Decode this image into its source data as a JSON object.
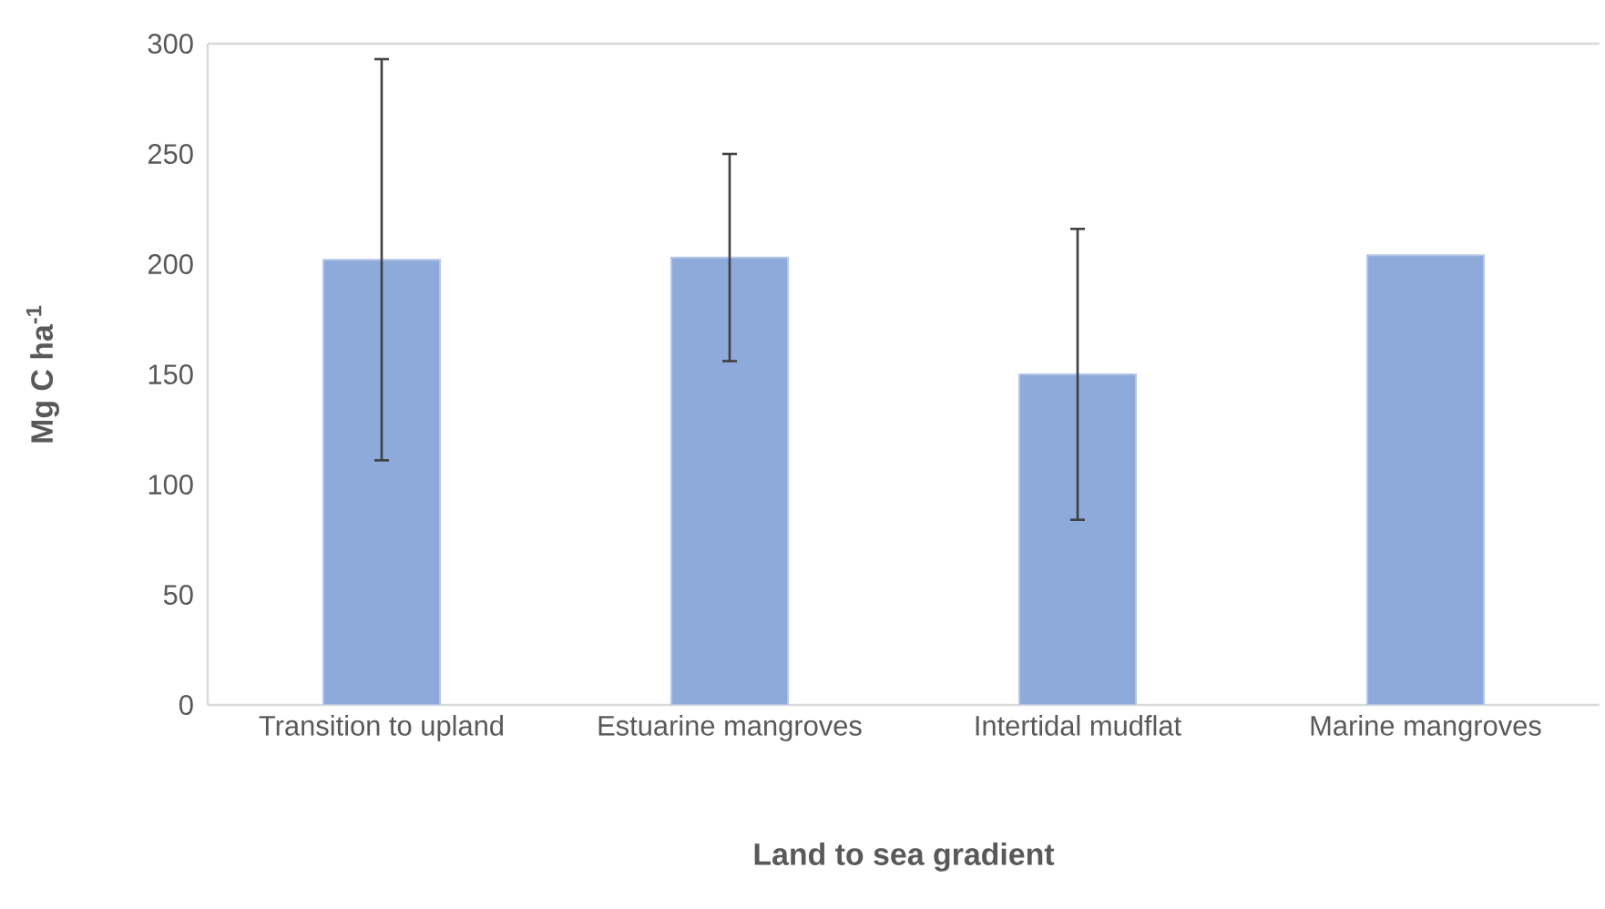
{
  "chart_data": {
    "type": "bar",
    "xlabel": "Land to sea gradient",
    "ylabel": "Mg C ha$^{-1}$",
    "categories": [
      "Transition to upland",
      "Estuarine mangroves",
      "Intertidal mudflat",
      "Marine mangroves"
    ],
    "values": [
      202,
      203,
      150,
      204
    ],
    "errors": [
      91,
      47,
      66,
      null
    ],
    "color": "#8eaadb",
    "ylim": [
      0,
      300
    ],
    "yticks": [
      0,
      50,
      100,
      150,
      200,
      250,
      300
    ]
  }
}
